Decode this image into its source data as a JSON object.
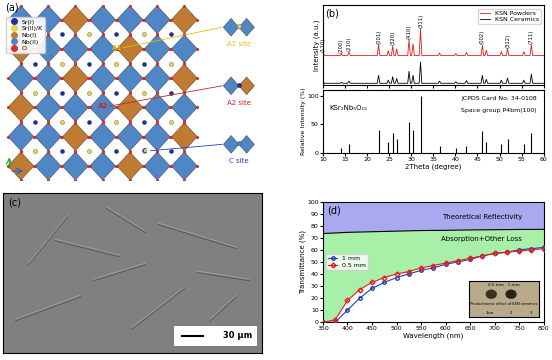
{
  "panels": {
    "a": {
      "label": "(a)",
      "legend": [
        {
          "name": "Sr(I)",
          "color": "#1c2f9e"
        },
        {
          "name": "Sr(II)/K",
          "color": "#e6d64a"
        },
        {
          "name": "Nb(I)",
          "color": "#c07a32"
        },
        {
          "name": "Nb(II)",
          "color": "#4f86c6"
        },
        {
          "name": "O",
          "color": "#d03030"
        }
      ],
      "sites": [
        "A1 site",
        "A2 site",
        "C site"
      ],
      "site_marks": [
        "A1",
        "A2",
        "C"
      ]
    },
    "c": {
      "label": "(c)",
      "scale_bar": "30 μm"
    }
  },
  "chart_data": [
    {
      "type": "line",
      "annotations": [
        "(b)"
      ],
      "y_label": "Intensity (a.u.)",
      "xlim": [
        10,
        60
      ],
      "xticks": [
        10,
        15,
        20,
        25,
        30,
        35,
        40,
        45,
        50,
        55,
        60
      ],
      "ylim": [
        0,
        300
      ],
      "tick_labels": false,
      "legend": "upper right",
      "grid": false,
      "series": [
        {
          "name": "KSN Powders",
          "color": "#e41a1c",
          "x": [
            9.8,
            10.1,
            10.4,
            13.9,
            14.2,
            14.5,
            15.6,
            15.9,
            16.2,
            22.3,
            22.6,
            22.9,
            24.5,
            24.8,
            25.1,
            25.5,
            25.8,
            26.1,
            26.4,
            26.7,
            27.0,
            29.2,
            29.5,
            29.8,
            30.1,
            30.4,
            30.7,
            31.8,
            32.1,
            32.4,
            36.1,
            36.4,
            36.7,
            39.8,
            40.1,
            40.4,
            42.2,
            42.5,
            42.8,
            45.8,
            46.1,
            46.4,
            46.7,
            47.0,
            47.3,
            50.1,
            50.4,
            50.7,
            51.5,
            51.8,
            52.1,
            55.2,
            55.5,
            55.8,
            56.9,
            57.2,
            57.5,
            60.0
          ],
          "values": [
            110,
            118,
            110,
            110,
            116,
            110,
            110,
            122,
            110,
            110,
            150,
            110,
            110,
            128,
            110,
            110,
            145,
            110,
            110,
            135,
            110,
            110,
            170,
            110,
            110,
            155,
            110,
            110,
            210,
            110,
            110,
            120,
            110,
            110,
            118,
            110,
            110,
            122,
            110,
            110,
            148,
            110,
            110,
            130,
            110,
            110,
            125,
            110,
            110,
            135,
            110,
            110,
            125,
            110,
            110,
            150,
            110,
            110
          ]
        },
        {
          "name": "KSN Ceramics",
          "color": "#000000",
          "x": [
            9.8,
            10.1,
            10.4,
            13.9,
            14.2,
            14.5,
            15.6,
            15.9,
            16.2,
            22.3,
            22.6,
            22.9,
            24.5,
            24.8,
            25.1,
            25.5,
            25.8,
            26.1,
            26.4,
            26.7,
            27.0,
            29.2,
            29.5,
            29.8,
            30.1,
            30.4,
            30.7,
            31.8,
            32.1,
            32.4,
            36.1,
            36.4,
            36.7,
            39.8,
            40.1,
            40.4,
            42.2,
            42.5,
            42.8,
            45.8,
            46.1,
            46.4,
            46.7,
            47.0,
            47.3,
            50.1,
            50.4,
            50.7,
            51.5,
            51.8,
            52.1,
            55.2,
            55.5,
            55.8,
            56.9,
            57.2,
            57.5,
            60.0
          ],
          "values": [
            5,
            10,
            5,
            5,
            9,
            5,
            5,
            13,
            5,
            5,
            35,
            5,
            5,
            17,
            5,
            5,
            30,
            5,
            5,
            23,
            5,
            5,
            50,
            5,
            5,
            35,
            5,
            5,
            85,
            5,
            5,
            13,
            5,
            5,
            11,
            5,
            5,
            15,
            5,
            5,
            35,
            5,
            5,
            20,
            5,
            5,
            17,
            5,
            5,
            25,
            5,
            5,
            17,
            5,
            5,
            40,
            5,
            5
          ]
        }
      ],
      "peak_labels": {
        "x": [
          10.1,
          14.2,
          15.9,
          22.6,
          25.8,
          29.5,
          32.1,
          46.1,
          51.8,
          57.2
        ],
        "labels": [
          "(110)",
          "(200)",
          "(210)",
          "(001)",
          "(320)",
          "(410)",
          "(311)",
          "(002)",
          "(312)",
          "(711)"
        ]
      }
    },
    {
      "type": "stick",
      "annotations": [
        "KSr₂Nb₅O₁₅",
        "JCPDS Card No. 34-0108",
        "Space group P4bm(100)"
      ],
      "x_label": "2Theta (degree)",
      "y_label": "Relative Intensity (%)",
      "xlim": [
        10,
        60
      ],
      "xticks": [
        10,
        15,
        20,
        25,
        30,
        35,
        40,
        45,
        50,
        55,
        60
      ],
      "ylim": [
        0,
        110
      ],
      "yticks": [
        0,
        50,
        100
      ],
      "color": "#000000",
      "grid": false,
      "x": [
        10.1,
        14.2,
        15.9,
        22.6,
        24.8,
        25.8,
        26.7,
        29.5,
        30.4,
        32.1,
        36.4,
        40.1,
        42.5,
        46.1,
        47.0,
        50.4,
        51.8,
        55.5,
        57.2
      ],
      "values": [
        10,
        8,
        15,
        40,
        20,
        35,
        25,
        55,
        40,
        100,
        12,
        8,
        12,
        38,
        20,
        15,
        25,
        15,
        35
      ]
    },
    {
      "type": "line",
      "annotations": [
        "(d)",
        "Theoretical Reflectivity",
        "Absorption+Other Loss"
      ],
      "x_label": "Wavelength (nm)",
      "y_label": "Transmittance (%)",
      "xlim": [
        350,
        800
      ],
      "xticks": [
        350,
        400,
        450,
        500,
        550,
        600,
        650,
        700,
        750,
        800
      ],
      "ylim": [
        0,
        100
      ],
      "yticks": [
        0,
        10,
        20,
        30,
        40,
        50,
        60,
        70,
        80,
        90,
        100
      ],
      "legend": "center left",
      "grid": false,
      "series": [
        {
          "name": "1 mm",
          "color": "#1f3fbf",
          "marker": "circle",
          "x": [
            350,
            375,
            400,
            425,
            450,
            475,
            500,
            525,
            550,
            575,
            600,
            625,
            650,
            675,
            700,
            725,
            750,
            775,
            800
          ],
          "values": [
            0,
            0,
            10,
            20,
            28,
            33,
            37,
            40,
            43,
            45,
            48,
            50,
            52,
            55,
            57,
            58,
            60,
            61,
            62
          ]
        },
        {
          "name": "0.5 mm",
          "color": "#e0201a",
          "marker": "diamond",
          "x": [
            350,
            375,
            400,
            425,
            450,
            475,
            500,
            525,
            550,
            575,
            600,
            625,
            650,
            675,
            700,
            725,
            750,
            775,
            800
          ],
          "values": [
            0,
            2,
            18,
            27,
            33,
            37,
            40,
            42,
            45,
            47,
            49,
            51,
            53,
            55,
            57,
            58,
            59,
            60,
            61
          ]
        }
      ],
      "reflectivity": {
        "color": "#000000",
        "x": [
          350,
          400,
          450,
          500,
          550,
          600,
          650,
          700,
          750,
          800
        ],
        "values": [
          73.5,
          74.5,
          75,
          75.5,
          76,
          76.2,
          76.5,
          76.7,
          76.9,
          77
        ]
      },
      "inset_texts": [
        "0.5 mm   1 mm",
        "Photochromic effect of KSN ceramics",
        "1cm",
        "2",
        "3"
      ]
    }
  ]
}
